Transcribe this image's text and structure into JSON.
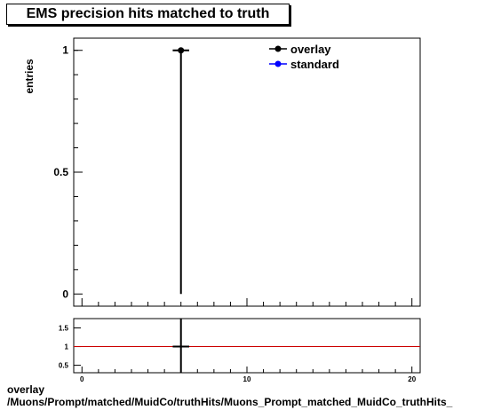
{
  "title": "EMS precision hits matched to truth",
  "footer": {
    "line1": "overlay",
    "line2": "/Muons/Prompt/matched/MuidCo/truthHits/Muons_Prompt_matched_MuidCo_truthHits_"
  },
  "chart_data": [
    {
      "type": "scatter",
      "title": "EMS precision hits matched to truth",
      "ylabel": "entries",
      "xlim": [
        -0.5,
        20.5
      ],
      "ylim": [
        -0.05,
        1.05
      ],
      "y_ticks": [
        0,
        0.5,
        1
      ],
      "y_tick_labels": [
        "0",
        "0.5",
        "1"
      ],
      "legend": {
        "position": "top-right",
        "entries": [
          {
            "name": "overlay",
            "color": "#000000"
          },
          {
            "name": "standard",
            "color": "#0000ff"
          }
        ]
      },
      "series": [
        {
          "name": "overlay",
          "color": "#000000",
          "points": [
            {
              "x": 6,
              "y": 1,
              "xerr": 0.5,
              "yerr": 1
            }
          ]
        },
        {
          "name": "standard",
          "color": "#0000ff",
          "points": []
        }
      ]
    },
    {
      "type": "line",
      "xlim": [
        -0.5,
        20.5
      ],
      "ylim": [
        0.3,
        1.75
      ],
      "x_ticks": [
        0,
        10,
        20
      ],
      "x_tick_labels": [
        "0",
        "10",
        "20"
      ],
      "y_ticks": [
        0.5,
        1,
        1.5
      ],
      "y_tick_labels": [
        "0.5",
        "1",
        "1.5"
      ],
      "reference_line": {
        "y": 1,
        "color": "#cc0000"
      },
      "points": [
        {
          "x": 6,
          "y": 1,
          "xerr": 0.5,
          "yerr": 1
        }
      ]
    }
  ]
}
